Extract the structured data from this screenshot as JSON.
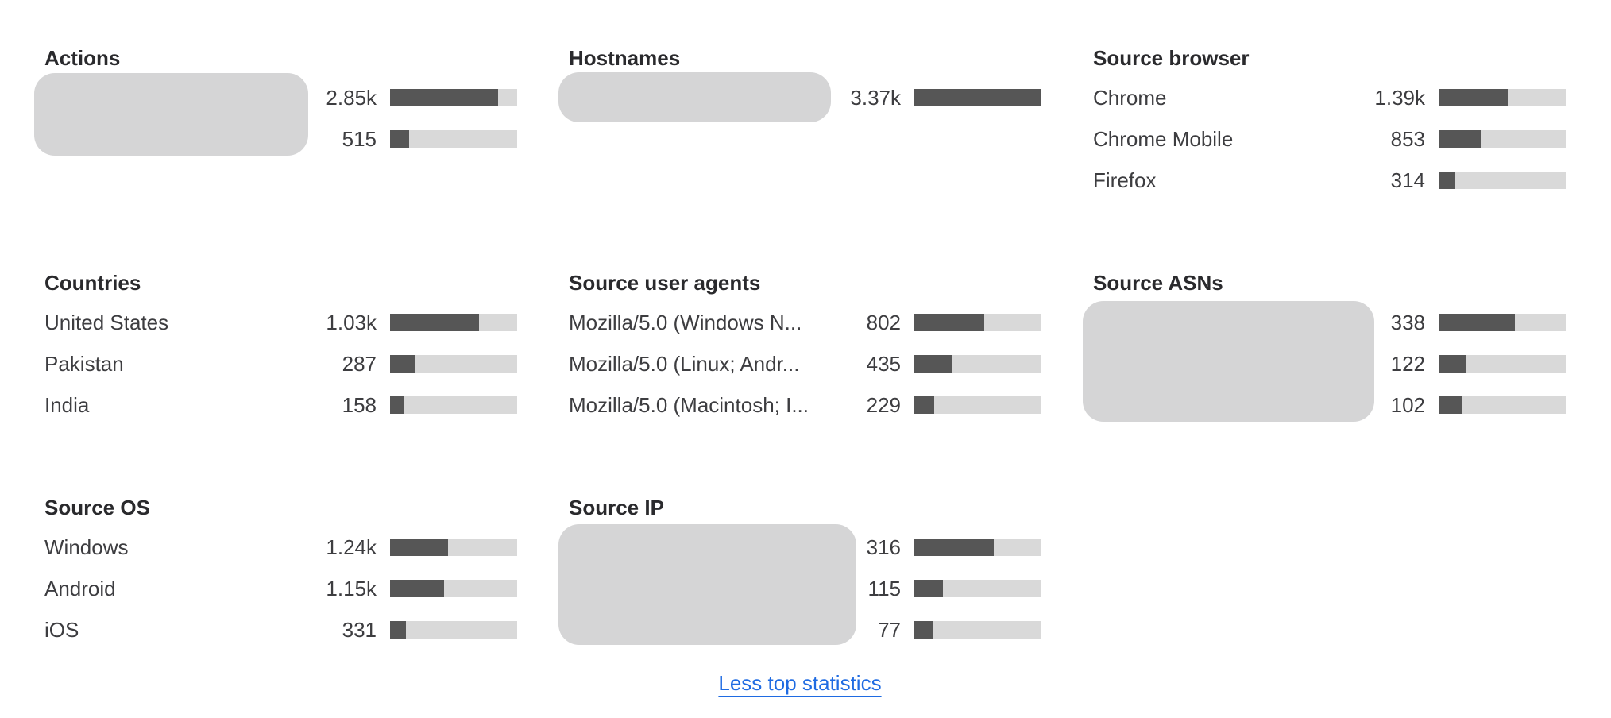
{
  "colors": {
    "bar_fill": "#565656",
    "bar_track": "#d9d9d9",
    "redaction_block": "#d5d5d6",
    "link": "#1f6be2",
    "title_text": "#2a2a2d",
    "body_text": "#3d3d40"
  },
  "sections": [
    {
      "title": "Actions",
      "redacted_labels": true,
      "items": [
        {
          "value": "2.85k",
          "percent": 84.7
        },
        {
          "value": "515",
          "percent": 15.3
        }
      ]
    },
    {
      "title": "Hostnames",
      "redacted_labels": true,
      "items": [
        {
          "value": "3.37k",
          "percent": 100
        }
      ]
    },
    {
      "title": "Source browser",
      "redacted_labels": false,
      "items": [
        {
          "label": "Chrome",
          "value": "1.39k",
          "percent": 54.4
        },
        {
          "label": "Chrome Mobile",
          "value": "853",
          "percent": 33.4
        },
        {
          "label": "Firefox",
          "value": "314",
          "percent": 12.3
        }
      ]
    },
    {
      "title": "Countries",
      "redacted_labels": false,
      "items": [
        {
          "label": "United States",
          "value": "1.03k",
          "percent": 69.8
        },
        {
          "label": "Pakistan",
          "value": "287",
          "percent": 19.5
        },
        {
          "label": "India",
          "value": "158",
          "percent": 10.7
        }
      ]
    },
    {
      "title": "Source user agents",
      "redacted_labels": false,
      "items": [
        {
          "label": "Mozilla/5.0 (Windows N...",
          "value": "802",
          "percent": 54.7
        },
        {
          "label": "Mozilla/5.0 (Linux; Andr...",
          "value": "435",
          "percent": 29.7
        },
        {
          "label": "Mozilla/5.0 (Macintosh; I...",
          "value": "229",
          "percent": 15.6
        }
      ]
    },
    {
      "title": "Source ASNs",
      "redacted_labels": true,
      "items": [
        {
          "value": "338",
          "percent": 60.1
        },
        {
          "value": "122",
          "percent": 21.7
        },
        {
          "value": "102",
          "percent": 18.1
        }
      ]
    },
    {
      "title": "Source OS",
      "redacted_labels": false,
      "items": [
        {
          "label": "Windows",
          "value": "1.24k",
          "percent": 45.6
        },
        {
          "label": "Android",
          "value": "1.15k",
          "percent": 42.3
        },
        {
          "label": "iOS",
          "value": "331",
          "percent": 12.2
        }
      ]
    },
    {
      "title": "Source IP",
      "redacted_labels": true,
      "items": [
        {
          "value": "316",
          "percent": 62.2
        },
        {
          "value": "115",
          "percent": 22.6
        },
        {
          "value": "77",
          "percent": 15.2
        }
      ]
    }
  ],
  "footer": {
    "link_label": "Less top statistics"
  }
}
